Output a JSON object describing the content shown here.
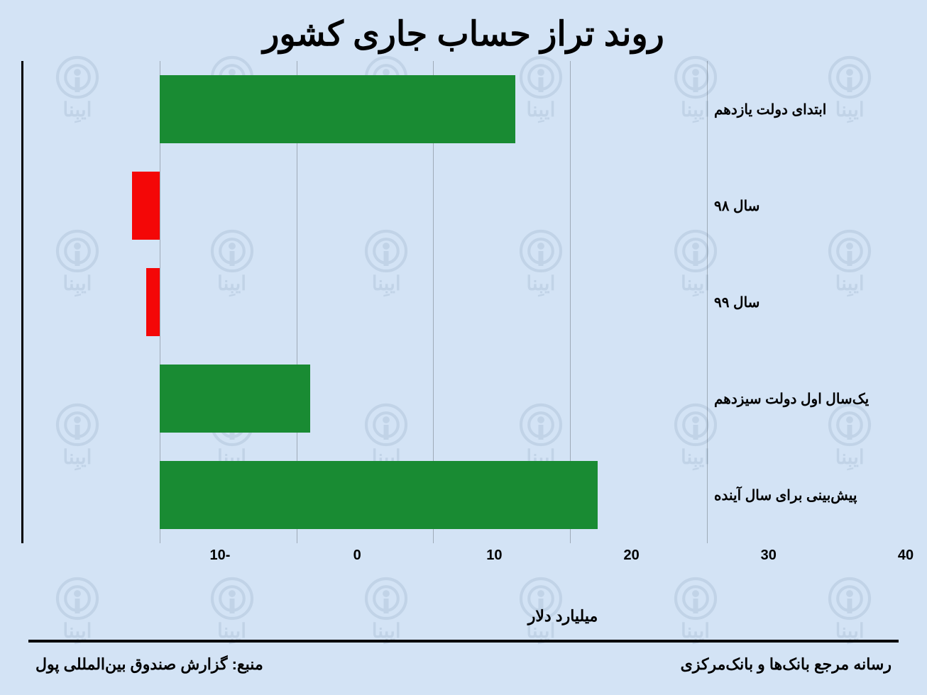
{
  "title": "روند تراز حساب جاری کشور",
  "xlabel": "میلیارد دلار",
  "chart": {
    "type": "bar",
    "orientation": "horizontal",
    "background_color": "#d3e3f5",
    "grid_color": "rgba(0,0,0,0.25)",
    "axis_color": "#000000",
    "xlim": [
      -10,
      40
    ],
    "xticks": [
      -10,
      0,
      10,
      20,
      30,
      40
    ],
    "bar_height_ratio": 0.7,
    "series": [
      {
        "label": "ابتدای دولت یازدهم",
        "value": 26,
        "color": "#198b33"
      },
      {
        "label": "سال ۹۸",
        "value": -2,
        "color": "#f40707"
      },
      {
        "label": "سال ۹۹",
        "value": -1,
        "color": "#f40707"
      },
      {
        "label": "یک‌سال اول دولت سیزدهم",
        "value": 11,
        "color": "#198b33"
      },
      {
        "label": "پیش‌بینی برای سال آینده",
        "value": 32,
        "color": "#198b33"
      }
    ],
    "title_fontsize": 48,
    "label_fontsize": 20,
    "tick_fontsize": 20
  },
  "footer": {
    "right": "رسانه مرجع بانک‌ها و بانک‌مرکزی",
    "left": "منبع: گزارش صندوق بین‌المللی پول"
  },
  "watermark": {
    "text": "ایبِنا",
    "color": "#4a6a8a",
    "opacity": 0.12,
    "rows": 4,
    "cols": 6
  }
}
